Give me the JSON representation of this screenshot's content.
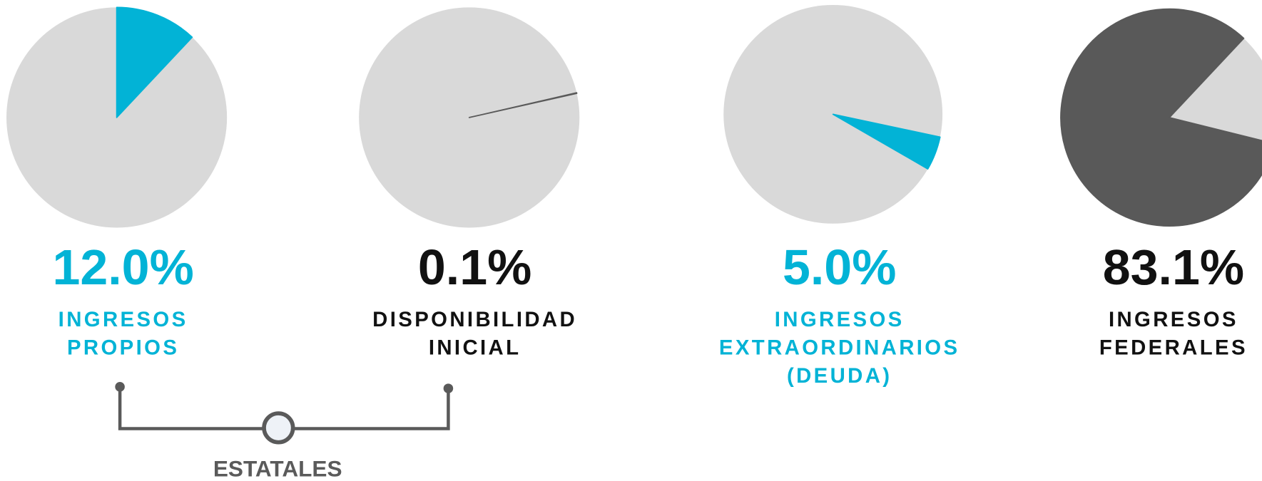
{
  "chart_data": [
    {
      "type": "pie",
      "values": [
        12.0
      ],
      "value_labels": [
        "12.0%"
      ],
      "label": [
        "INGRESOS",
        "PROPIOS"
      ],
      "color": "#02b3d6",
      "rest_color": "#d9d9d9",
      "text_color": "#02b3d6"
    },
    {
      "type": "pie",
      "values": [
        0.1
      ],
      "value_labels": [
        "0.1%"
      ],
      "label": [
        "DISPONIBILIDAD",
        "INICIAL"
      ],
      "color": "#595959",
      "rest_color": "#d9d9d9",
      "text_color": "#111111"
    },
    {
      "type": "pie",
      "values": [
        5.0
      ],
      "value_labels": [
        "5.0%"
      ],
      "label": [
        "INGRESOS",
        "EXTRAORDINARIOS",
        "(DEUDA)"
      ],
      "color": "#02b3d6",
      "rest_color": "#d9d9d9",
      "text_color": "#02b3d6"
    },
    {
      "type": "pie",
      "values": [
        83.1
      ],
      "value_labels": [
        "83.1%"
      ],
      "label": [
        "INGRESOS",
        "FEDERALES"
      ],
      "color": "#595959",
      "rest_color": "#d9d9d9",
      "text_color": "#111111"
    }
  ],
  "group": {
    "label": "ESTATALES"
  }
}
